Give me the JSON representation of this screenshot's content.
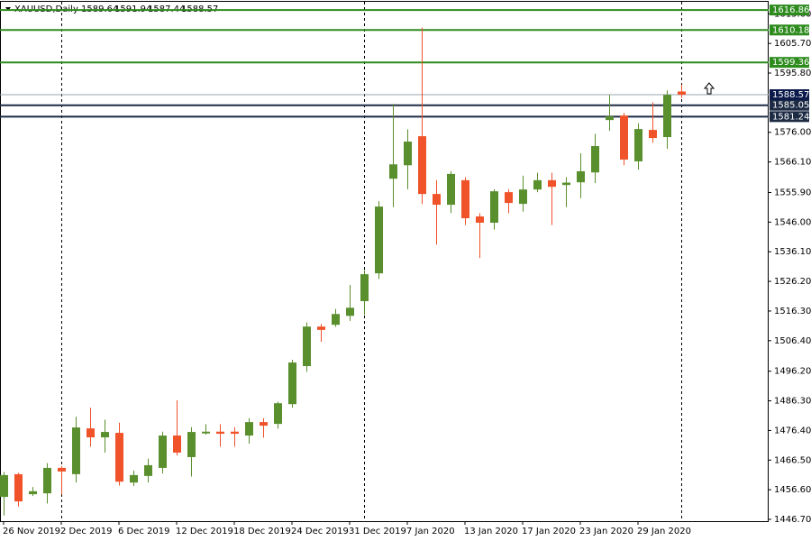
{
  "chart_data": {
    "type": "candlestick",
    "symbol": "XAUUSD,Daily",
    "categories": [
      "26 Nov 2019",
      null,
      null,
      null,
      "2 Dec 2019",
      null,
      null,
      null,
      "6 Dec 2019",
      null,
      null,
      null,
      "12 Dec 2019",
      null,
      null,
      null,
      "18 Dec 2019",
      null,
      null,
      null,
      "24 Dec 2019",
      null,
      null,
      null,
      "31 Dec 2019",
      null,
      null,
      null,
      "7 Jan 2020",
      null,
      null,
      null,
      "13 Jan 2020",
      null,
      null,
      null,
      "17 Jan 2020",
      null,
      null,
      null,
      "23 Jan 2020",
      null,
      null,
      null,
      "29 Jan 2020",
      null,
      null,
      null
    ],
    "open": [
      1454.2,
      1461.8,
      1455.1,
      1455.4,
      1463.9,
      1461.8,
      1477.1,
      1474.1,
      1475.6,
      1459.0,
      1461.2,
      1463.9,
      1474.7,
      1467.5,
      1475.4,
      1476.0,
      1476.0,
      1474.7,
      1479.2,
      1478.6,
      1485.2,
      1497.9,
      1511.1,
      1511.7,
      1514.7,
      1519.6,
      1528.9,
      1560.5,
      1565.0,
      1574.7,
      1555.4,
      1551.8,
      1560.0,
      1547.9,
      1545.8,
      1556.0,
      1552.1,
      1556.9,
      1560.0,
      1558.4,
      1559.3,
      1562.6,
      1580.1,
      1581.6,
      1566.3,
      1576.8,
      1574.4,
      1589.64
    ],
    "high": [
      1462.5,
      1462.2,
      1457.5,
      1465.5,
      1464.5,
      1481.0,
      1484.0,
      1480.0,
      1479.0,
      1463.0,
      1467.0,
      1476.0,
      1486.5,
      1477.5,
      1478.5,
      1478.5,
      1477.5,
      1480.5,
      1480.5,
      1486.0,
      1500.0,
      1512.5,
      1512.0,
      1517.0,
      1525.0,
      1530.0,
      1553.0,
      1585.5,
      1577.0,
      1611.0,
      1560.0,
      1563.0,
      1561.0,
      1549.0,
      1557.0,
      1557.0,
      1561.5,
      1562.5,
      1562.5,
      1561.0,
      1569.0,
      1575.5,
      1588.5,
      1582.5,
      1579.0,
      1586.0,
      1590.0,
      1591.94
    ],
    "low": [
      1448.0,
      1451.0,
      1454.5,
      1452.0,
      1455.0,
      1459.0,
      1471.0,
      1469.0,
      1458.0,
      1457.8,
      1459.0,
      1462.0,
      1468.0,
      1461.0,
      1475.0,
      1471.0,
      1471.0,
      1472.0,
      1474.0,
      1477.0,
      1484.0,
      1496.0,
      1506.0,
      1511.0,
      1513.0,
      1515.0,
      1527.0,
      1551.0,
      1557.0,
      1552.0,
      1538.5,
      1549.0,
      1545.0,
      1534.0,
      1543.5,
      1549.0,
      1549.5,
      1556.0,
      1545.0,
      1551.0,
      1554.0,
      1559.0,
      1576.5,
      1565.0,
      1563.5,
      1572.5,
      1570.5,
      1587.44
    ],
    "close": [
      1461.5,
      1452.7,
      1456.1,
      1463.9,
      1462.7,
      1477.4,
      1474.1,
      1475.9,
      1459.3,
      1461.5,
      1464.8,
      1474.7,
      1469.0,
      1475.9,
      1476.0,
      1475.3,
      1475.3,
      1479.2,
      1478.0,
      1485.5,
      1499.1,
      1511.1,
      1510.0,
      1515.3,
      1517.4,
      1528.6,
      1551.2,
      1565.3,
      1572.9,
      1555.4,
      1551.8,
      1562.1,
      1547.3,
      1545.8,
      1556.3,
      1552.4,
      1556.9,
      1560.0,
      1557.8,
      1559.2,
      1563.0,
      1571.4,
      1581.3,
      1566.9,
      1577.1,
      1574.1,
      1588.5,
      1588.57
    ],
    "up_color": "#5a8f2e",
    "down_color": "#f0522a",
    "ylim": [
      1446.1,
      1619.6
    ],
    "yticks": [
      {
        "value": 1446.7,
        "label": "1446.70"
      },
      {
        "value": 1456.6,
        "label": "1456.60"
      },
      {
        "value": 1466.5,
        "label": "1466.50"
      },
      {
        "value": 1476.4,
        "label": "1476.40"
      },
      {
        "value": 1486.3,
        "label": "1486.30"
      },
      {
        "value": 1496.2,
        "label": "1496.20"
      },
      {
        "value": 1506.4,
        "label": "1506.40"
      },
      {
        "value": 1516.3,
        "label": "1516.30"
      },
      {
        "value": 1526.2,
        "label": "1526.20"
      },
      {
        "value": 1536.1,
        "label": "1536.10"
      },
      {
        "value": 1546,
        "label": "1546.00"
      },
      {
        "value": 1555.9,
        "label": "1555.90"
      },
      {
        "value": 1566.1,
        "label": "1566.10"
      },
      {
        "value": 1576,
        "label": "1576.00"
      },
      {
        "value": 1595.8,
        "label": "1595.80"
      },
      {
        "value": 1605.7,
        "label": "1605.70"
      },
      {
        "value": 1615.6,
        "label": "1615.60"
      }
    ],
    "levels": [
      {
        "value": 1616.86,
        "color": "#2e8b1e"
      },
      {
        "value": 1610.18,
        "color": "#2e8b1e"
      },
      {
        "value": 1599.36,
        "color": "#2e8b1e"
      },
      {
        "value": 1585.05,
        "color": "#1d2b44"
      },
      {
        "value": 1581.24,
        "color": "#1d2b44"
      }
    ],
    "price_line_color": "#9aa6b2",
    "price_label_color": "#0b1a4a",
    "period_separators": [
      4,
      25,
      47
    ]
  }
}
